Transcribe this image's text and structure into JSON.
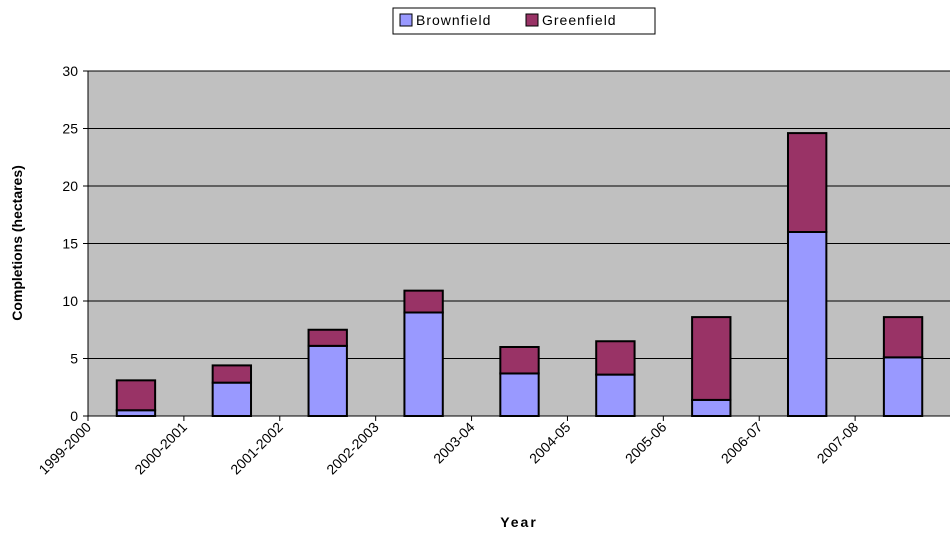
{
  "chart_data": {
    "type": "bar",
    "stacked": true,
    "categories": [
      "1999-2000",
      "2000-2001",
      "2001-2002",
      "2002-2003",
      "2003-04",
      "2004-05",
      "2005-06",
      "2006-07",
      "2007-08"
    ],
    "series": [
      {
        "name": "Brownfield",
        "color": "#9999ff",
        "values": [
          0.5,
          2.9,
          6.1,
          9.0,
          3.7,
          3.6,
          1.4,
          16.0,
          5.1
        ]
      },
      {
        "name": "Greenfield",
        "color": "#993366",
        "values": [
          2.6,
          1.5,
          1.4,
          1.9,
          2.3,
          2.9,
          7.2,
          8.6,
          3.5
        ]
      }
    ],
    "title": "",
    "xlabel": "Year",
    "ylabel": "Completions (hectares)",
    "ylim": [
      0,
      30
    ],
    "yticks": [
      0,
      5,
      10,
      15,
      20,
      25,
      30
    ],
    "grid": true,
    "plot_background": "#c0c0c0",
    "legend_position": "top-center"
  }
}
